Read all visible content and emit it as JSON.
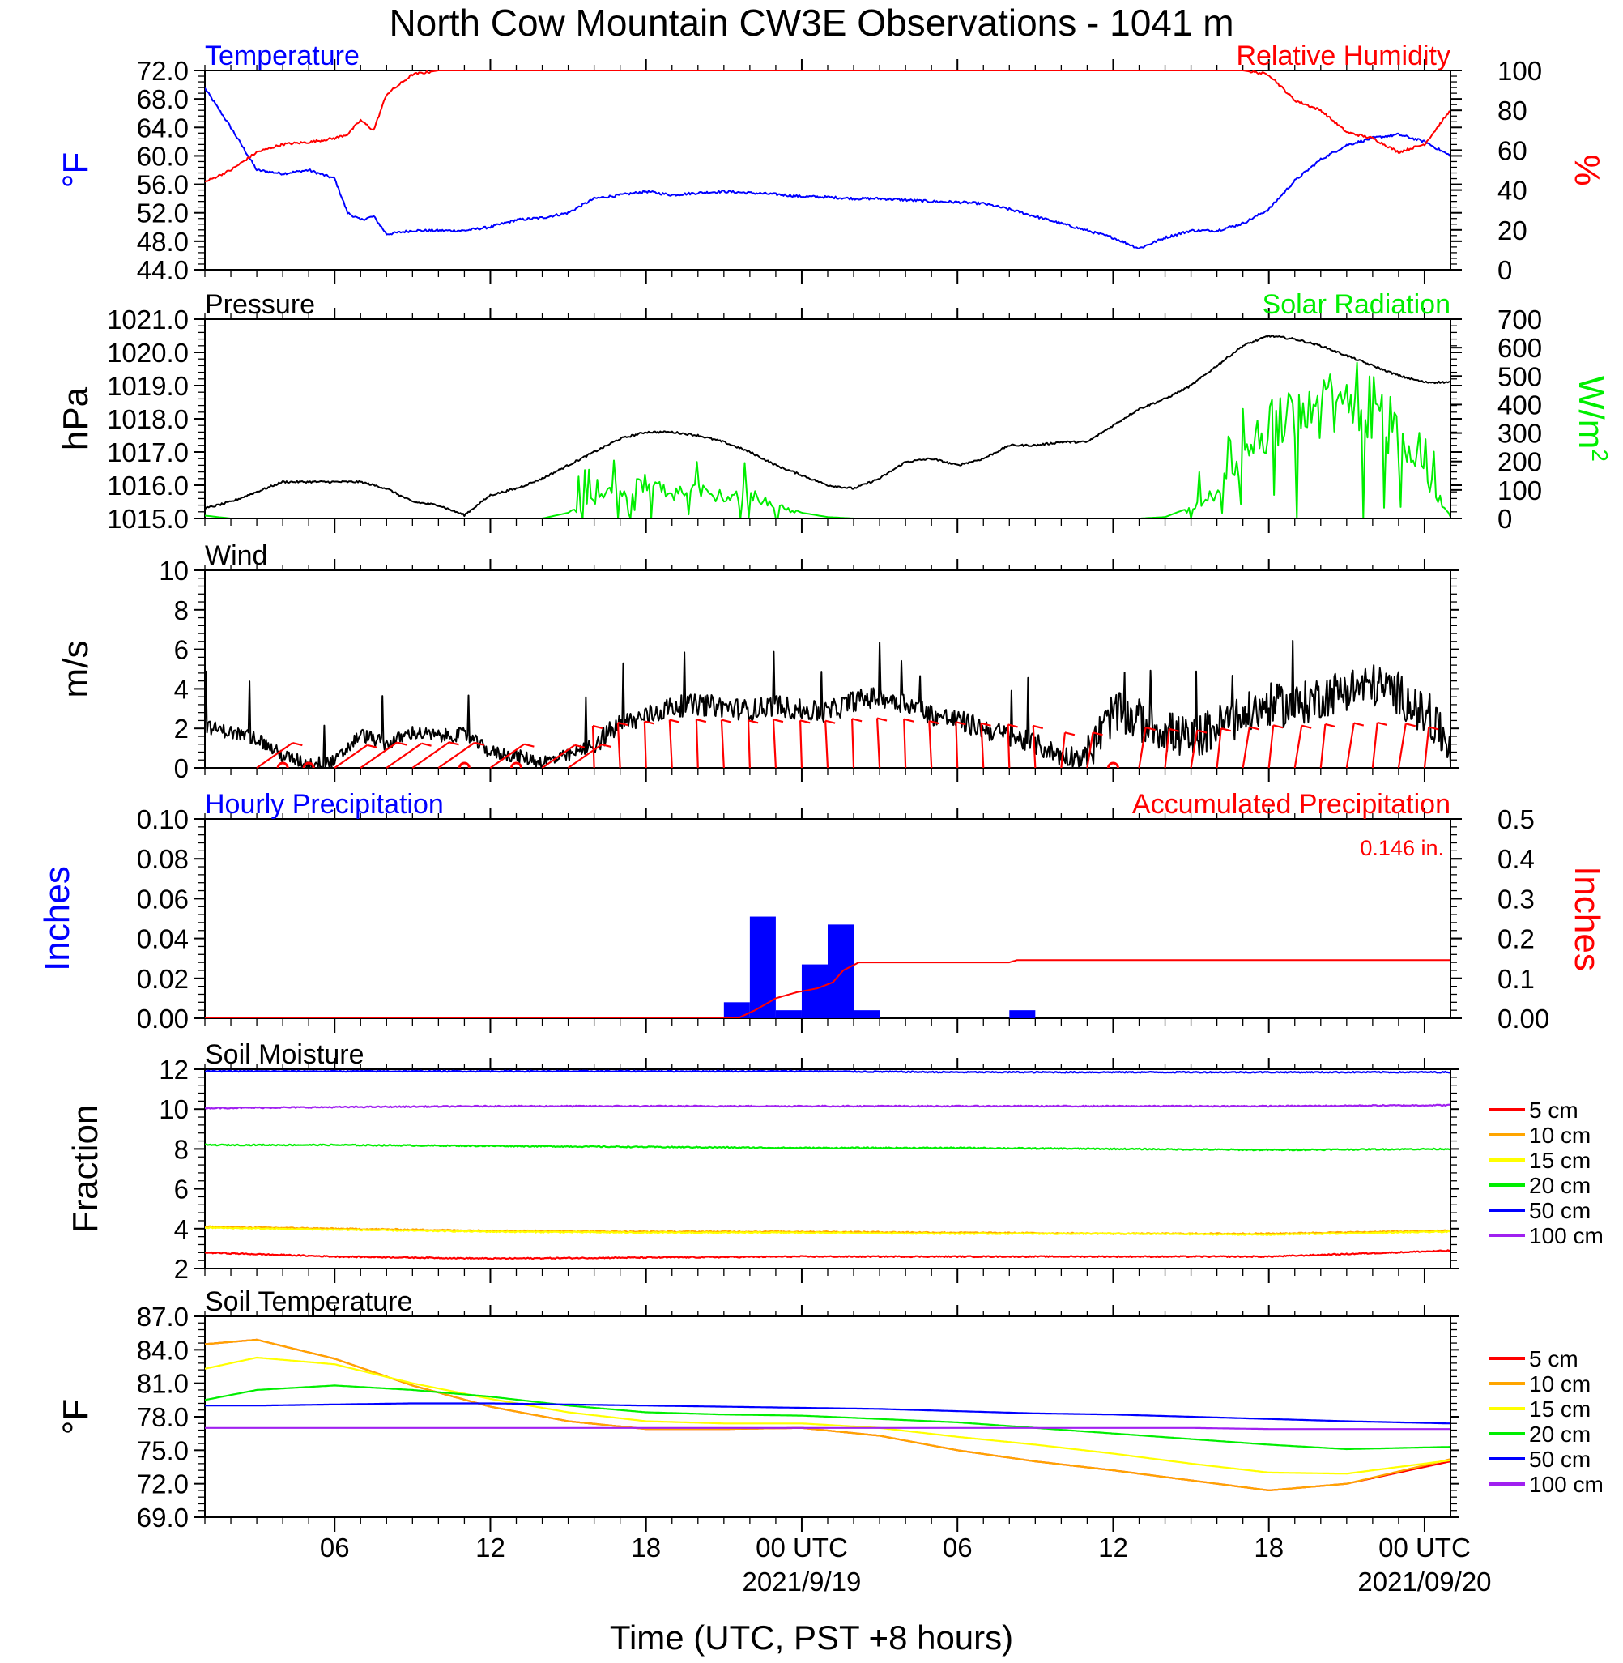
{
  "figure": {
    "title": "North Cow Mountain CW3E Observations - 1041 m",
    "xlabel": "Time (UTC, PST +8 hours)",
    "x_ticks": [
      {
        "hour": 6,
        "label": "06"
      },
      {
        "hour": 12,
        "label": "12"
      },
      {
        "hour": 18,
        "label": "18"
      },
      {
        "hour": 24,
        "label": "00 UTC",
        "date": "2021/9/19"
      },
      {
        "hour": 30,
        "label": "06"
      },
      {
        "hour": 36,
        "label": "12"
      },
      {
        "hour": 42,
        "label": "18"
      },
      {
        "hour": 48,
        "label": "00 UTC",
        "date": "2021/09/20"
      }
    ],
    "x_range_hours": [
      1,
      49
    ]
  },
  "chart_data": [
    {
      "id": "temp-rh",
      "type": "line",
      "left_title": "Temperature",
      "right_title": "Relative Humidity",
      "ylabel": "°F",
      "ylabel_right": "%",
      "ylim": [
        44,
        72
      ],
      "y_ticks": [
        "72.0",
        "68.0",
        "64.0",
        "60.0",
        "56.0",
        "52.0",
        "48.0",
        "44.0"
      ],
      "ylim_right": [
        0,
        100
      ],
      "y_ticks_right": [
        "100",
        "80",
        "60",
        "40",
        "20",
        "0"
      ],
      "x": [
        1,
        2,
        3,
        4,
        5,
        6,
        6.5,
        7,
        7.5,
        8,
        9,
        10,
        11,
        12,
        13,
        14,
        15,
        16,
        17,
        18,
        19,
        20,
        21,
        22,
        23,
        24,
        25,
        26,
        27,
        28,
        29,
        30,
        31,
        32,
        33,
        34,
        35,
        36,
        37,
        38,
        39,
        40,
        41,
        42,
        43,
        44,
        45,
        46,
        47,
        48,
        49
      ],
      "series": [
        {
          "name": "Temperature",
          "color": "#0000ff",
          "axis": "left",
          "values": [
            69.5,
            64,
            58,
            57.5,
            58,
            56.8,
            52,
            51,
            51.5,
            49,
            49.5,
            49.5,
            49.5,
            50,
            51,
            51.3,
            52,
            54,
            54.5,
            55,
            54.5,
            54.8,
            55,
            54.8,
            54.6,
            54.3,
            54.2,
            54,
            54,
            53.8,
            53.6,
            53.5,
            53.3,
            52.5,
            51.5,
            50.5,
            49.5,
            48.5,
            47,
            48.5,
            49.5,
            49.5,
            50.5,
            52.5,
            56.5,
            59.5,
            61.5,
            62.5,
            63,
            62,
            60
          ]
        },
        {
          "name": "Relative Humidity",
          "color": "#ff0000",
          "axis": "right",
          "values": [
            44,
            50,
            59,
            63,
            64,
            66,
            68,
            75,
            70,
            88,
            98,
            100,
            100,
            100,
            100,
            100,
            100,
            100,
            100,
            100,
            100,
            100,
            100,
            100,
            100,
            100,
            100,
            100,
            100,
            100,
            100,
            100,
            100,
            100,
            100,
            100,
            100,
            100,
            100,
            100,
            100,
            100,
            100,
            98,
            85,
            80,
            69,
            66,
            59,
            63,
            80
          ]
        }
      ]
    },
    {
      "id": "pressure-solar",
      "type": "line",
      "left_title": "Pressure",
      "right_title": "Solar Radiation",
      "ylabel": "hPa",
      "ylabel_right": "W/m",
      "ylabel_right_sup": "2",
      "ylim": [
        1015,
        1021
      ],
      "y_ticks": [
        "1021.0",
        "1020.0",
        "1019.0",
        "1018.0",
        "1017.0",
        "1016.0",
        "1015.0"
      ],
      "ylim_right": [
        0,
        700
      ],
      "y_ticks_right": [
        "700",
        "600",
        "500",
        "400",
        "300",
        "200",
        "100",
        "0"
      ],
      "x": [
        1,
        2,
        3,
        4,
        5,
        6,
        7,
        8,
        9,
        10,
        11,
        12,
        13,
        14,
        15,
        16,
        17,
        18,
        19,
        20,
        21,
        22,
        23,
        24,
        25,
        26,
        27,
        28,
        29,
        30,
        31,
        32,
        33,
        34,
        35,
        36,
        37,
        38,
        39,
        40,
        41,
        42,
        43,
        44,
        45,
        46,
        47,
        48,
        49
      ],
      "series": [
        {
          "name": "Pressure",
          "color": "#000000",
          "axis": "left",
          "values": [
            1015.3,
            1015.5,
            1015.8,
            1016.1,
            1016.1,
            1016.1,
            1016.1,
            1015.9,
            1015.5,
            1015.4,
            1015.1,
            1015.7,
            1015.9,
            1016.2,
            1016.6,
            1017.0,
            1017.4,
            1017.6,
            1017.6,
            1017.5,
            1017.3,
            1017.0,
            1016.6,
            1016.3,
            1016.0,
            1015.9,
            1016.2,
            1016.7,
            1016.8,
            1016.6,
            1016.8,
            1017.2,
            1017.2,
            1017.3,
            1017.3,
            1017.8,
            1018.3,
            1018.6,
            1019.0,
            1019.6,
            1020.2,
            1020.5,
            1020.4,
            1020.2,
            1019.9,
            1019.6,
            1019.3,
            1019.1,
            1019.1
          ]
        },
        {
          "name": "Solar Radiation",
          "color": "#00ee00",
          "axis": "right",
          "values": [
            10,
            0,
            0,
            0,
            0,
            0,
            0,
            0,
            0,
            0,
            0,
            0,
            0,
            0,
            20,
            80,
            130,
            160,
            110,
            120,
            100,
            110,
            60,
            20,
            5,
            0,
            0,
            0,
            0,
            0,
            0,
            0,
            0,
            0,
            0,
            0,
            0,
            5,
            40,
            120,
            270,
            420,
            520,
            480,
            530,
            510,
            350,
            200,
            5
          ]
        }
      ]
    },
    {
      "id": "wind",
      "type": "line",
      "left_title": "Wind",
      "ylabel": "m/s",
      "ylim": [
        0,
        10
      ],
      "y_ticks": [
        "10",
        "8",
        "6",
        "4",
        "2",
        "0"
      ],
      "x": [
        1,
        2,
        3,
        4,
        5,
        6,
        7,
        8,
        9,
        10,
        11,
        12,
        13,
        14,
        15,
        16,
        17,
        18,
        19,
        20,
        21,
        22,
        23,
        24,
        25,
        26,
        27,
        28,
        29,
        30,
        31,
        32,
        33,
        34,
        35,
        36,
        37,
        38,
        39,
        40,
        41,
        42,
        43,
        44,
        45,
        46,
        47,
        48,
        49
      ],
      "series": [
        {
          "name": "Wind speed",
          "color": "#000000",
          "axis": "left",
          "values": [
            2.1,
            1.8,
            1.5,
            0.6,
            0.2,
            0.3,
            1.7,
            1.2,
            1.8,
            1.6,
            1.7,
            0.8,
            0.6,
            0.3,
            0.6,
            1.2,
            2.2,
            2.6,
            3.1,
            3.2,
            3.1,
            2.9,
            3.2,
            2.9,
            2.8,
            3.4,
            3.6,
            3.3,
            2.7,
            2.4,
            2.0,
            1.6,
            1.2,
            0.6,
            0.6,
            2.8,
            2.4,
            1.9,
            1.4,
            2.1,
            2.6,
            3.2,
            3.1,
            3.6,
            4.0,
            4.2,
            3.8,
            2.6,
            1.2
          ]
        }
      ],
      "barbs": [
        {
          "x": 3.0,
          "calm": false
        },
        {
          "x": 4.0,
          "calm": true
        },
        {
          "x": 5.0,
          "calm": true
        },
        {
          "x": 6.0,
          "calm": false
        },
        {
          "x": 7.0,
          "calm": false
        },
        {
          "x": 8.0,
          "calm": false
        },
        {
          "x": 9.0,
          "calm": false
        },
        {
          "x": 10.0,
          "calm": false
        },
        {
          "x": 11.0,
          "calm": true
        },
        {
          "x": 12.0,
          "calm": false
        },
        {
          "x": 13.0,
          "calm": true
        },
        {
          "x": 14.0,
          "calm": false
        },
        {
          "x": 15.0,
          "calm": false
        },
        {
          "x": 16.0,
          "calm": false
        },
        {
          "x": 17.0,
          "calm": false
        },
        {
          "x": 18.0,
          "calm": false
        },
        {
          "x": 19.0,
          "calm": false
        },
        {
          "x": 20.0,
          "calm": false
        },
        {
          "x": 21.0,
          "calm": false
        },
        {
          "x": 22.0,
          "calm": false
        },
        {
          "x": 23.0,
          "calm": false
        },
        {
          "x": 24.0,
          "calm": false
        },
        {
          "x": 25.0,
          "calm": false
        },
        {
          "x": 26.0,
          "calm": false
        },
        {
          "x": 27.0,
          "calm": false
        },
        {
          "x": 28.0,
          "calm": false
        },
        {
          "x": 29.0,
          "calm": false
        },
        {
          "x": 30.0,
          "calm": false
        },
        {
          "x": 31.0,
          "calm": false
        },
        {
          "x": 32.0,
          "calm": false
        },
        {
          "x": 33.0,
          "calm": false
        },
        {
          "x": 34.0,
          "calm": false
        },
        {
          "x": 35.0,
          "calm": false
        },
        {
          "x": 36.0,
          "calm": true
        },
        {
          "x": 37.0,
          "calm": false
        },
        {
          "x": 38.0,
          "calm": false
        },
        {
          "x": 39.0,
          "calm": false
        },
        {
          "x": 40.0,
          "calm": false
        },
        {
          "x": 41.0,
          "calm": false
        },
        {
          "x": 42.0,
          "calm": false
        },
        {
          "x": 43.0,
          "calm": false
        },
        {
          "x": 44.0,
          "calm": false
        },
        {
          "x": 45.0,
          "calm": false
        },
        {
          "x": 46.0,
          "calm": false
        },
        {
          "x": 47.0,
          "calm": false
        },
        {
          "x": 48.0,
          "calm": false
        }
      ]
    },
    {
      "id": "precipitation",
      "type": "bar",
      "left_title": "Hourly Precipitation",
      "right_title": "Accumulated Precipitation",
      "annotation": "0.146 in.",
      "ylabel": "Inches",
      "ylabel_right": "Inches",
      "ylim": [
        0,
        0.1
      ],
      "y_ticks": [
        "0.10",
        "0.08",
        "0.06",
        "0.04",
        "0.02",
        "0.00"
      ],
      "ylim_right": [
        0,
        0.5
      ],
      "y_ticks_right": [
        "0.5",
        "0.4",
        "0.3",
        "0.2",
        "0.1",
        "0.00"
      ],
      "bars": [
        {
          "hour": 21,
          "value": 0.008
        },
        {
          "hour": 22,
          "value": 0.051
        },
        {
          "hour": 23,
          "value": 0.004
        },
        {
          "hour": 24,
          "value": 0.027
        },
        {
          "hour": 25,
          "value": 0.047
        },
        {
          "hour": 26,
          "value": 0.004
        },
        {
          "hour": 32,
          "value": 0.004
        }
      ],
      "series": [
        {
          "name": "Accumulated Precipitation",
          "color": "#ff0000",
          "axis": "right",
          "x": [
            1,
            21,
            21.6,
            22.2,
            23,
            23.8,
            24.6,
            25.2,
            25.6,
            26.2,
            32,
            32.3,
            49
          ],
          "values": [
            0,
            0,
            0.002,
            0.02,
            0.05,
            0.065,
            0.075,
            0.09,
            0.12,
            0.14,
            0.14,
            0.146,
            0.146
          ]
        }
      ]
    },
    {
      "id": "soil-moisture",
      "type": "line",
      "left_title": "Soil Moisture",
      "ylabel": "Fraction",
      "ylim": [
        2,
        12
      ],
      "y_ticks": [
        "12",
        "10",
        "8",
        "6",
        "4",
        "2"
      ],
      "x": [
        1,
        6,
        12,
        18,
        24,
        30,
        36,
        42,
        49
      ],
      "series": [
        {
          "name": "5 cm",
          "color": "#ff0000",
          "values": [
            2.8,
            2.6,
            2.5,
            2.55,
            2.6,
            2.6,
            2.6,
            2.6,
            2.9
          ]
        },
        {
          "name": "10 cm",
          "color": "#ffa500",
          "values": [
            4.1,
            4.0,
            3.9,
            3.85,
            3.85,
            3.8,
            3.75,
            3.75,
            3.9
          ]
        },
        {
          "name": "15 cm",
          "color": "#ffff00",
          "values": [
            4.05,
            3.95,
            3.85,
            3.8,
            3.8,
            3.75,
            3.75,
            3.7,
            3.85
          ]
        },
        {
          "name": "20 cm",
          "color": "#00ee00",
          "values": [
            8.2,
            8.2,
            8.15,
            8.1,
            8.05,
            8.05,
            8.0,
            7.95,
            8.0
          ]
        },
        {
          "name": "50 cm",
          "color": "#0000ff",
          "values": [
            11.9,
            11.9,
            11.9,
            11.9,
            11.9,
            11.85,
            11.85,
            11.85,
            11.85
          ]
        },
        {
          "name": "100 cm",
          "color": "#a020f0",
          "values": [
            10.05,
            10.1,
            10.15,
            10.15,
            10.15,
            10.15,
            10.15,
            10.15,
            10.2
          ]
        }
      ]
    },
    {
      "id": "soil-temperature",
      "type": "line",
      "left_title": "Soil Temperature",
      "ylabel": "°F",
      "ylim": [
        69,
        87
      ],
      "y_ticks": [
        "87.0",
        "84.0",
        "81.0",
        "78.0",
        "75.0",
        "72.0",
        "69.0"
      ],
      "x": [
        1,
        3,
        6,
        9,
        12,
        15,
        18,
        21,
        24,
        27,
        30,
        33,
        36,
        39,
        42,
        45,
        49
      ],
      "series": [
        {
          "name": "5 cm",
          "color": "#ff0000",
          "values": [
            84.5,
            84.9,
            83.2,
            80.8,
            78.9,
            77.6,
            76.9,
            76.9,
            77.0,
            76.3,
            75.0,
            74.0,
            73.2,
            72.3,
            71.4,
            72.0,
            74.0
          ]
        },
        {
          "name": "10 cm",
          "color": "#ffa500",
          "values": [
            84.5,
            84.9,
            83.2,
            80.8,
            78.9,
            77.6,
            76.9,
            76.9,
            77.0,
            76.3,
            75.0,
            74.0,
            73.2,
            72.3,
            71.4,
            72.0,
            74.2
          ]
        },
        {
          "name": "15 cm",
          "color": "#ffff00",
          "values": [
            82.3,
            83.3,
            82.7,
            81.0,
            79.6,
            78.4,
            77.6,
            77.4,
            77.4,
            77.0,
            76.2,
            75.5,
            74.7,
            73.8,
            73.0,
            72.9,
            74.1
          ]
        },
        {
          "name": "20 cm",
          "color": "#00ee00",
          "values": [
            79.5,
            80.4,
            80.8,
            80.4,
            79.8,
            79.0,
            78.4,
            78.2,
            78.1,
            77.8,
            77.5,
            77.0,
            76.5,
            76.0,
            75.5,
            75.1,
            75.3
          ]
        },
        {
          "name": "50 cm",
          "color": "#0000ff",
          "values": [
            79.0,
            79.0,
            79.1,
            79.2,
            79.2,
            79.1,
            79.0,
            78.9,
            78.8,
            78.7,
            78.5,
            78.3,
            78.2,
            78.0,
            77.8,
            77.6,
            77.4
          ]
        },
        {
          "name": "100 cm",
          "color": "#a020f0",
          "values": [
            77.0,
            77.0,
            77.0,
            77.0,
            77.0,
            77.0,
            77.0,
            77.0,
            77.0,
            77.0,
            77.0,
            77.0,
            77.0,
            77.0,
            76.9,
            76.9,
            76.9
          ]
        }
      ]
    }
  ]
}
